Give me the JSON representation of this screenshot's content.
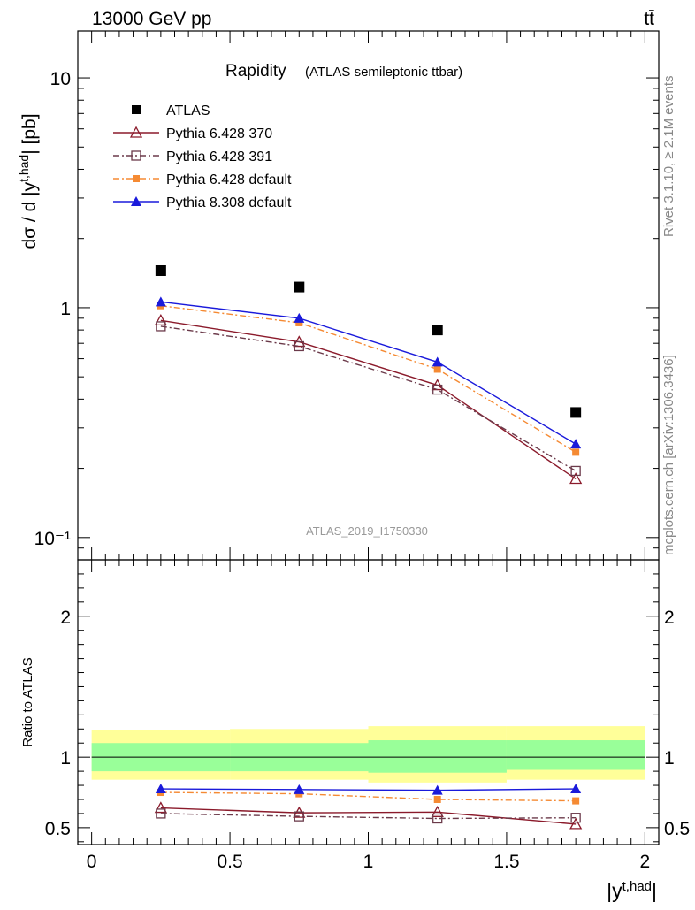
{
  "header": {
    "left": "13000 GeV pp",
    "right": "tt̄"
  },
  "side_text": {
    "top": "Rivet 3.1.10, ≥ 2.1M events",
    "bottom": "mcplots.cern.ch [arXiv:1306.3436]"
  },
  "colors": {
    "ATLAS": "#000000",
    "Pythia 6.428 370": "#8b1a2b",
    "Pythia 6.428 391": "#6b3a4a",
    "Pythia 6.428 default": "#f58a33",
    "Pythia 8.308 default": "#1a1adb",
    "band_inner": "#99ff99",
    "band_outer": "#ffff99"
  },
  "chart_data": [
    {
      "type": "line",
      "title": "Rapidity",
      "subtitle": "(ATLAS semileptonic ttbar)",
      "watermark": "ATLAS_2019_I1750330",
      "ylabel": "dσ / d |y^{t,had}| [pb]",
      "y_scale": "log",
      "ylim": [
        0.08,
        16
      ],
      "y_tick_labels": [
        "10⁻¹",
        "1",
        "10"
      ],
      "xlim": [
        -0.05,
        2.05
      ],
      "x": [
        0.25,
        0.75,
        1.25,
        1.75
      ],
      "x_bin_edges": [
        0,
        0.5,
        1,
        1.5,
        2
      ],
      "legend_position": "top-left",
      "series": [
        {
          "name": "ATLAS",
          "marker": "square",
          "values": [
            1.45,
            1.23,
            0.8,
            0.35
          ]
        },
        {
          "name": "Pythia 6.428 370",
          "marker": "open-triangle",
          "line": "solid",
          "values": [
            0.88,
            0.71,
            0.46,
            0.18
          ]
        },
        {
          "name": "Pythia 6.428 391",
          "marker": "open-square",
          "line": "dashdot",
          "values": [
            0.83,
            0.68,
            0.44,
            0.195
          ]
        },
        {
          "name": "Pythia 6.428 default",
          "marker": "small-square",
          "line": "dashdot",
          "values": [
            1.02,
            0.86,
            0.54,
            0.235
          ]
        },
        {
          "name": "Pythia 8.308 default",
          "marker": "triangle",
          "line": "solid",
          "values": [
            1.06,
            0.9,
            0.58,
            0.255
          ]
        }
      ]
    },
    {
      "type": "line",
      "ylabel": "Ratio to ATLAS",
      "xlabel": "|y^{t,had}|",
      "ylim": [
        0.38,
        2.4
      ],
      "y_tick_labels": [
        "0.5",
        "1",
        "2"
      ],
      "x_tick_labels": [
        "0",
        "0.5",
        "1",
        "1.5",
        "2"
      ],
      "xlim": [
        -0.05,
        2.05
      ],
      "x": [
        0.25,
        0.75,
        1.25,
        1.75
      ],
      "bands": {
        "inner": [
          [
            0.9,
            1.1
          ],
          [
            0.9,
            1.1
          ],
          [
            0.89,
            1.12
          ],
          [
            0.91,
            1.12
          ]
        ],
        "outer": [
          [
            0.84,
            1.19
          ],
          [
            0.84,
            1.2
          ],
          [
            0.82,
            1.22
          ],
          [
            0.84,
            1.22
          ]
        ]
      },
      "series": [
        {
          "name": "Pythia 6.428 370",
          "values": [
            0.64,
            0.605,
            0.61,
            0.525
          ]
        },
        {
          "name": "Pythia 6.428 391",
          "values": [
            0.6,
            0.58,
            0.565,
            0.57
          ]
        },
        {
          "name": "Pythia 6.428 default",
          "values": [
            0.75,
            0.74,
            0.7,
            0.69
          ]
        },
        {
          "name": "Pythia 8.308 default",
          "values": [
            0.775,
            0.77,
            0.765,
            0.775
          ]
        }
      ]
    }
  ]
}
